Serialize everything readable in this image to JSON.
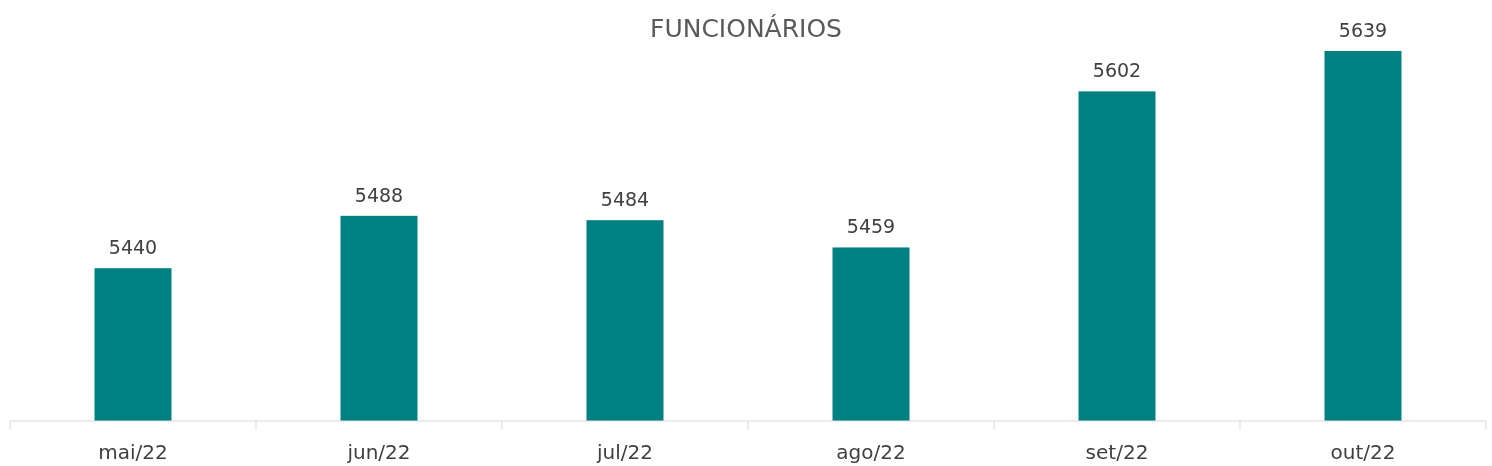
{
  "chart_data": {
    "type": "bar",
    "title": "FUNCIONÁRIOS",
    "categories": [
      "mai/22",
      "jun/22",
      "jul/22",
      "ago/22",
      "set/22",
      "out/22"
    ],
    "values": [
      5440,
      5488,
      5484,
      5459,
      5602,
      5639
    ],
    "color": "#008080",
    "ylim": [
      5300,
      5639
    ],
    "data_labels": true
  }
}
